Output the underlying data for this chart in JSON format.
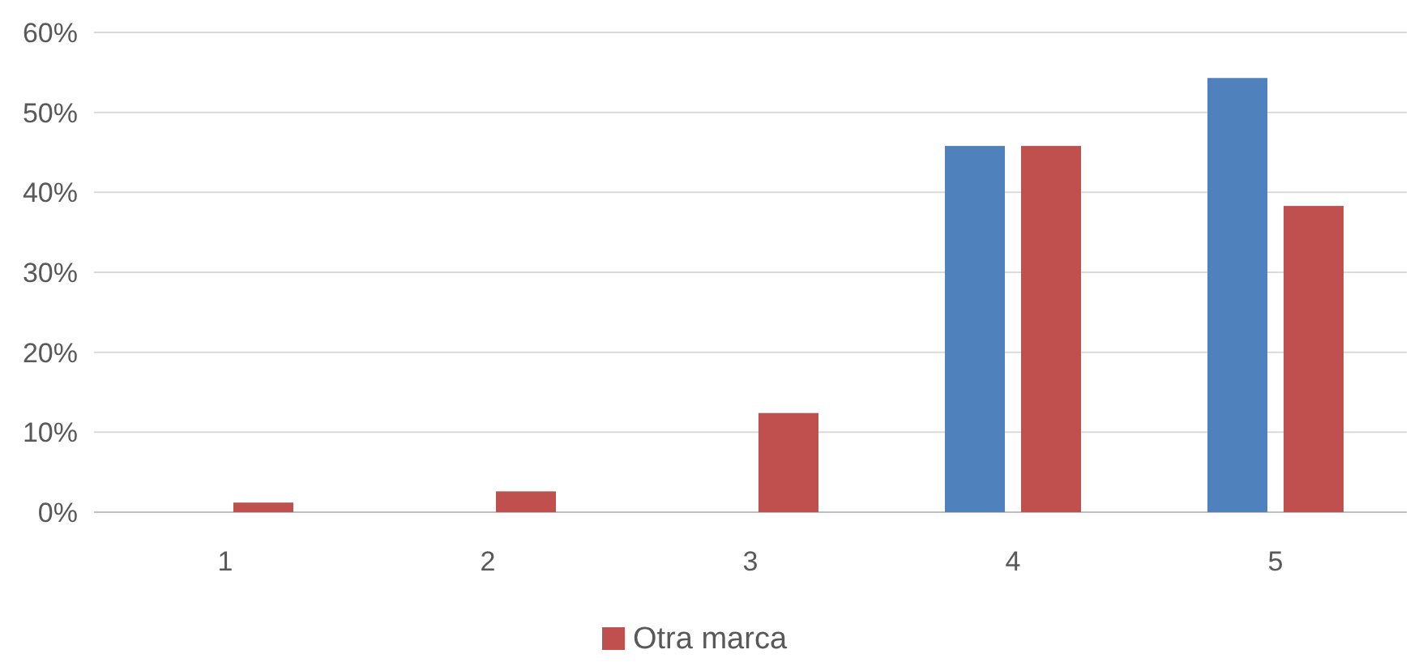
{
  "chart_data": {
    "type": "bar",
    "categories": [
      "1",
      "2",
      "3",
      "4",
      "5"
    ],
    "series": [
      {
        "color": "#4f81bd",
        "values": [
          0,
          0,
          0,
          45.8,
          54.3
        ]
      },
      {
        "name": "Otra marca",
        "color": "#c0504d",
        "values": [
          1.2,
          2.6,
          12.4,
          45.8,
          38.3
        ]
      }
    ],
    "ylim": [
      0,
      60
    ],
    "yticks": [
      {
        "value": 0,
        "label": "0%"
      },
      {
        "value": 10,
        "label": "10%"
      },
      {
        "value": 20,
        "label": "20%"
      },
      {
        "value": 30,
        "label": "30%"
      },
      {
        "value": 40,
        "label": "40%"
      },
      {
        "value": 50,
        "label": "50%"
      },
      {
        "value": 60,
        "label": "60%"
      }
    ],
    "grid": "y",
    "legend": "bottom"
  }
}
